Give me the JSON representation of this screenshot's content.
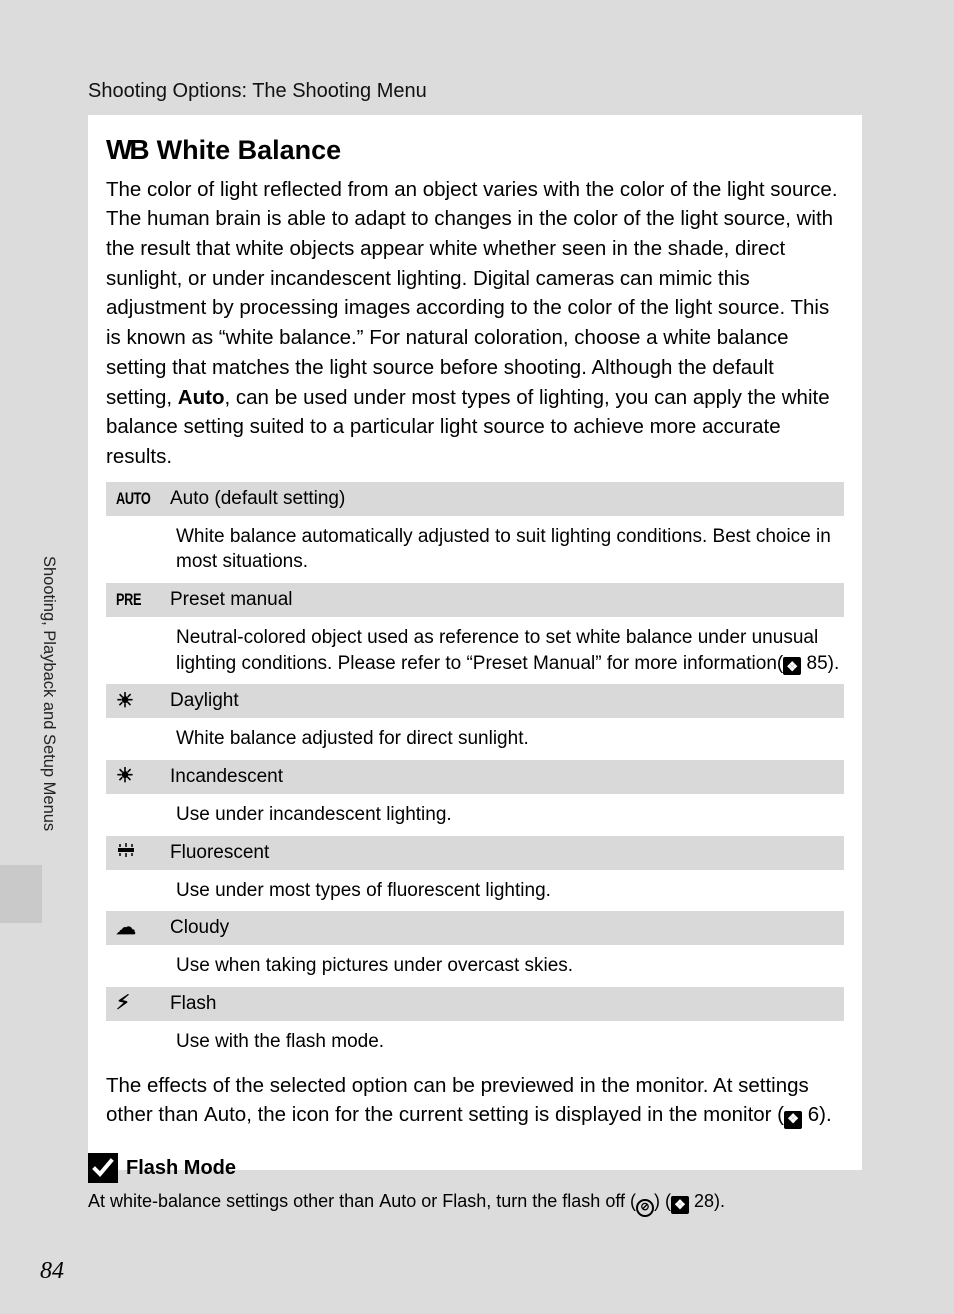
{
  "breadcrumb": "Shooting Options: The Shooting Menu",
  "section": {
    "wb_glyph": "WB",
    "title": "White Balance",
    "intro_part1": "The color of light reflected from an object varies with the color of the light source. The human brain is able to adapt to changes in the color of the light source, with the result that white objects appear white whether seen in the shade, direct sunlight, or under incandescent lighting. Digital cameras can mimic this adjustment by processing images according to the color of the light source. This is known as “white balance.” For natural coloration, choose a white balance setting that matches the light source before shooting. Although the default setting, ",
    "intro_bold": "Auto",
    "intro_part2": ", can be used under most types of lighting, you can apply the white balance setting suited to a particular light source to achieve more accurate results."
  },
  "wb_options": [
    {
      "icon_type": "text",
      "icon_text": "AUTO",
      "label": "Auto (default setting)",
      "desc_pre": "White balance automatically adjusted to suit lighting conditions. Best choice in most situations.",
      "desc_ref": "",
      "desc_post": ""
    },
    {
      "icon_type": "text",
      "icon_text": "PRE",
      "label": "Preset manual",
      "desc_pre": "Neutral-colored object used as reference to set white balance under unusual lighting conditions. Please refer to “Preset Manual” for more information(",
      "desc_ref": "85",
      "desc_post": ")."
    },
    {
      "icon_type": "sym",
      "icon_text": "☀︎",
      "label": "Daylight",
      "desc_pre": "White balance adjusted for direct sunlight.",
      "desc_ref": "",
      "desc_post": ""
    },
    {
      "icon_type": "sym",
      "icon_text": "☀︎",
      "label": "Incandescent",
      "desc_pre": "Use under incandescent lighting.",
      "desc_ref": "",
      "desc_post": ""
    },
    {
      "icon_type": "svg_fluorescent",
      "icon_text": "",
      "label": "Fluorescent",
      "desc_pre": "Use under most types of fluorescent lighting.",
      "desc_ref": "",
      "desc_post": ""
    },
    {
      "icon_type": "sym",
      "icon_text": "☁︎",
      "label": "Cloudy",
      "desc_pre": "Use when taking pictures under overcast skies.",
      "desc_ref": "",
      "desc_post": ""
    },
    {
      "icon_type": "sym",
      "icon_text": "⚡︎",
      "label": "Flash",
      "desc_pre": "Use with the flash mode.",
      "desc_ref": "",
      "desc_post": ""
    }
  ],
  "after_table": {
    "p1": "The effects of the selected option can be previewed in the monitor. At settings other than ",
    "bold": "Auto",
    "p2": ", the icon for the current setting is displayed in the monitor (",
    "ref": "6",
    "p3": ")."
  },
  "note": {
    "title": "Flash Mode",
    "body_p1": "At white-balance settings other than ",
    "body_b1": "Auto",
    "body_p2": " or ",
    "body_b2": "Flash",
    "body_p3": ", turn the flash off (",
    "flash_off_glyph": "⊘",
    "body_p4": ") (",
    "ref": "28",
    "body_p5": ")."
  },
  "side_label": "Shooting, Playback and Setup Menus",
  "page_number": "84",
  "colors": {
    "page_bg": "#dcdcdc",
    "content_bg": "#ffffff",
    "row_hdr_bg": "#d9d9d9",
    "text": "#000000"
  }
}
